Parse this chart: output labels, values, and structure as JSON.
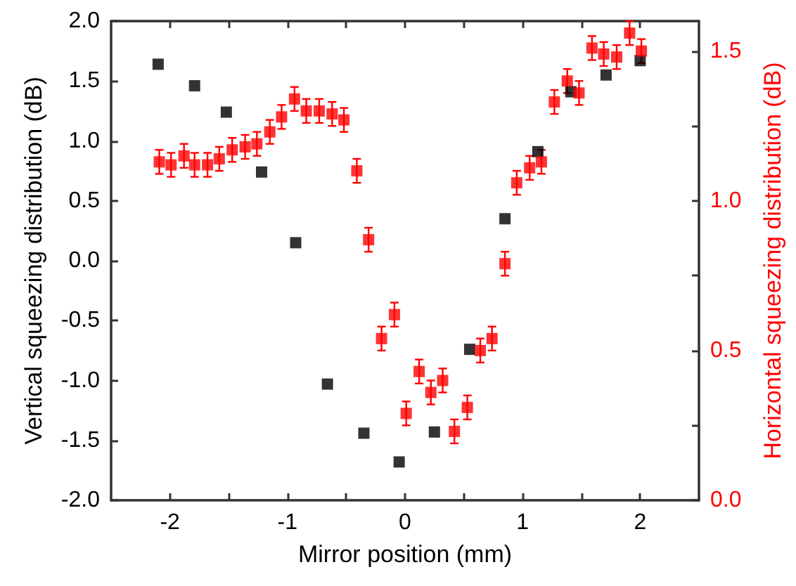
{
  "chart_data": {
    "type": "scatter",
    "xlabel": "Mirror position (mm)",
    "ylabel": "Vertical squeezing distribution (dB)",
    "y2label": "Horizontal squeezing distribution (dB)",
    "marker": "square",
    "grid": false,
    "xlim": [
      -2.5,
      2.5
    ],
    "xticks": [
      {
        "value": -2,
        "label": "-2"
      },
      {
        "value": -1.5,
        "label": null
      },
      {
        "value": -1,
        "label": "-1"
      },
      {
        "value": -0.5,
        "label": null
      },
      {
        "value": 0,
        "label": "0"
      },
      {
        "value": 0.5,
        "label": null
      },
      {
        "value": 1,
        "label": "1"
      },
      {
        "value": 1.5,
        "label": null
      },
      {
        "value": 2,
        "label": "2"
      }
    ],
    "ylim": [
      -2,
      2
    ],
    "yticks": [
      {
        "value": -2,
        "label": "-2.0"
      },
      {
        "value": -1.5,
        "label": "-1.5"
      },
      {
        "value": -1,
        "label": "-1.0"
      },
      {
        "value": -0.5,
        "label": "-0.5"
      },
      {
        "value": 0,
        "label": "0.0"
      },
      {
        "value": 0.5,
        "label": "0.5"
      },
      {
        "value": 1,
        "label": "1.0"
      },
      {
        "value": 1.5,
        "label": "1.5"
      },
      {
        "value": 2,
        "label": "2.0"
      }
    ],
    "y2lim": [
      0,
      1.6
    ],
    "y2ticks": [
      {
        "value": 0,
        "label": "0.0"
      },
      {
        "value": 0.25,
        "label": null
      },
      {
        "value": 0.5,
        "label": "0.5"
      },
      {
        "value": 0.75,
        "label": null
      },
      {
        "value": 1,
        "label": "1.0"
      },
      {
        "value": 1.25,
        "label": null
      },
      {
        "value": 1.5,
        "label": "1.5"
      }
    ],
    "series": [
      {
        "color": "#000000",
        "x": [
          -2.1,
          -1.79,
          -1.52,
          -1.22,
          -0.93,
          -0.66,
          -0.35,
          -0.05,
          0.25,
          0.55,
          0.85,
          1.13,
          1.41,
          1.71,
          2.0
        ],
        "values": [
          1.64,
          1.46,
          1.24,
          0.74,
          0.15,
          -1.03,
          -1.44,
          -1.68,
          -1.43,
          -0.74,
          0.35,
          0.91,
          1.41,
          1.55,
          1.67
        ]
      },
      {
        "color": "#ff0000",
        "axis": "y2",
        "x": [
          -2.09,
          -1.99,
          -1.88,
          -1.79,
          -1.68,
          -1.58,
          -1.47,
          -1.36,
          -1.26,
          -1.15,
          -1.05,
          -0.94,
          -0.84,
          -0.73,
          -0.62,
          -0.52,
          -0.41,
          -0.31,
          -0.2,
          -0.09,
          0.01,
          0.12,
          0.22,
          0.32,
          0.42,
          0.53,
          0.64,
          0.74,
          0.85,
          0.95,
          1.06,
          1.16,
          1.27,
          1.38,
          1.48,
          1.59,
          1.69,
          1.8,
          1.91,
          2.01
        ],
        "values": [
          1.13,
          1.12,
          1.15,
          1.12,
          1.12,
          1.14,
          1.17,
          1.18,
          1.19,
          1.23,
          1.28,
          1.34,
          1.3,
          1.3,
          1.29,
          1.27,
          1.1,
          0.87,
          0.54,
          0.62,
          0.29,
          0.43,
          0.36,
          0.4,
          0.23,
          0.31,
          0.5,
          0.54,
          0.79,
          1.06,
          1.11,
          1.13,
          1.33,
          1.4,
          1.36,
          1.51,
          1.49,
          1.48,
          1.56,
          1.5
        ],
        "errors": [
          0.04,
          0.04,
          0.04,
          0.04,
          0.04,
          0.04,
          0.04,
          0.04,
          0.04,
          0.04,
          0.04,
          0.04,
          0.04,
          0.04,
          0.04,
          0.04,
          0.04,
          0.04,
          0.04,
          0.04,
          0.04,
          0.04,
          0.04,
          0.04,
          0.04,
          0.04,
          0.04,
          0.04,
          0.04,
          0.04,
          0.04,
          0.04,
          0.04,
          0.04,
          0.04,
          0.04,
          0.04,
          0.04,
          0.04,
          0.04
        ]
      }
    ]
  }
}
